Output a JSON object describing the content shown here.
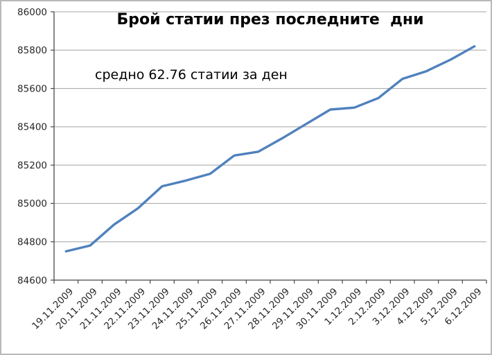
{
  "chart_data": {
    "type": "line",
    "title": "Брой статии през последните  дни",
    "annotation": "средно 62.76 статии за ден",
    "categories": [
      "19.11.2009",
      "20.11.2009",
      "21.11.2009",
      "22.11.2009",
      "23.11.2009",
      "24.11.2009",
      "25.11.2009",
      "26.11.2009",
      "27.11.2009",
      "28.11.2009",
      "29.11.2009",
      "30.11.2009",
      "1.12.2009",
      "2.12.2009",
      "3.12.2009",
      "4.12.2009",
      "5.12.2009",
      "6.12.2009"
    ],
    "series": [
      {
        "name": "Брой статии",
        "values": [
          84750,
          84780,
          84890,
          84975,
          85090,
          85120,
          85155,
          85250,
          85270,
          85340,
          85415,
          85490,
          85500,
          85550,
          85650,
          85690,
          85750,
          85820
        ]
      }
    ],
    "xlabel": "",
    "ylabel": "",
    "ylim": [
      84600,
      86000
    ],
    "ytick_step": 200,
    "ytick_labels": [
      84600,
      84800,
      85000,
      85200,
      85400,
      85600,
      85800,
      86000
    ],
    "grid": "horizontal",
    "legend": "none",
    "colors": {
      "line": "#4f81bd",
      "gridline": "#a3a3a3",
      "axis": "#474747",
      "tick_label": "#262626",
      "title": "#000000",
      "frame_border": "#b9b9b9",
      "background": "#ffffff"
    }
  }
}
